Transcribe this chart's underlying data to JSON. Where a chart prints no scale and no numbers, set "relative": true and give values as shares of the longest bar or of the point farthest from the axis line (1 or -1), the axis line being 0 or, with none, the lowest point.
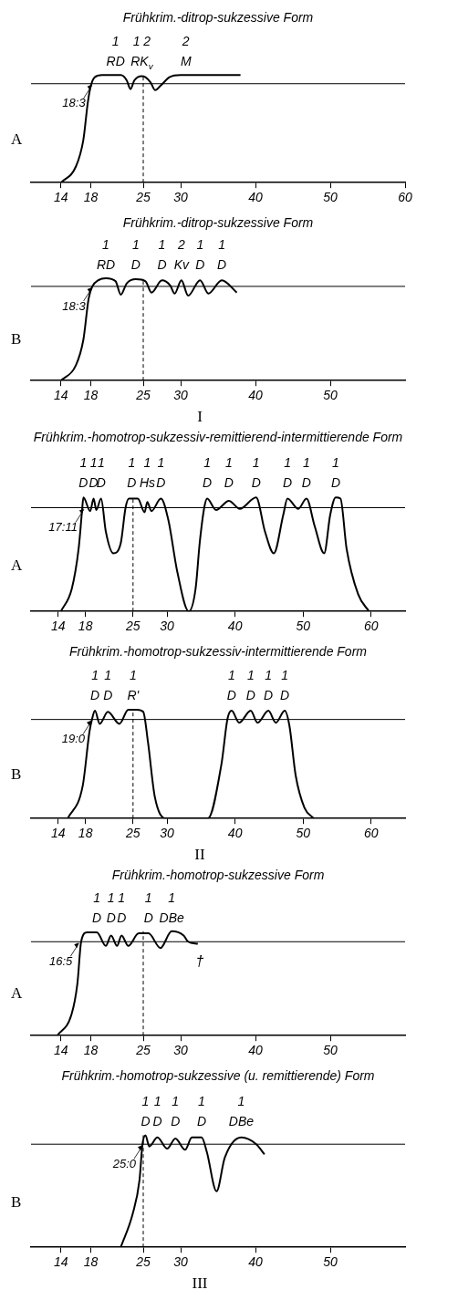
{
  "chart_data": [
    {
      "type": "line",
      "title": "Frühkrim.-ditrop-sukzessive Form",
      "relative": true,
      "color": "#000000",
      "xlim": [
        10,
        60
      ],
      "xticks": [
        14,
        18,
        25,
        30,
        40,
        50,
        60
      ],
      "x": [
        14,
        16,
        17,
        17.6,
        18,
        18.5,
        19.5,
        21.3,
        22,
        22.8,
        23.3,
        23.8,
        24.8,
        25.3,
        26,
        26.6,
        27.3,
        28.5,
        30,
        30.7,
        38
      ],
      "values": [
        0,
        0.15,
        0.4,
        0.75,
        0.9,
        0.98,
        1,
        1,
        1,
        0.95,
        0.87,
        0.95,
        0.99,
        0.98,
        0.93,
        0.86,
        0.9,
        0.98,
        1,
        1,
        1
      ],
      "ref_lines": [
        {
          "axis": "y",
          "value": 0.92
        },
        {
          "axis": "x",
          "value": 25,
          "line_style": "dashed"
        }
      ],
      "annotations": [
        "A",
        {
          "text": "18:3",
          "x": 18.25,
          "y": 0.92
        },
        {
          "text": "1\nRD",
          "x": 21.3,
          "y": 1
        },
        {
          "text": "1 2\nRK$_{v}$",
          "x": 24.8,
          "y": 0.99
        },
        {
          "text": "2\nM",
          "x": 30.7,
          "y": 1
        }
      ]
    },
    {
      "type": "line",
      "title": "Frühkrim.-ditrop-sukzessive Form",
      "relative": true,
      "color": "#000000",
      "xlim": [
        10,
        60
      ],
      "xticks": [
        14,
        18,
        25,
        30,
        40,
        50
      ],
      "x": [
        14,
        16,
        17,
        17.7,
        18.2,
        19,
        20,
        21.3,
        22,
        22.8,
        24,
        25.3,
        26.1,
        27.5,
        28.6,
        29.2,
        30.1,
        31,
        32.6,
        33.7,
        35.5,
        37.5
      ],
      "values": [
        0,
        0.15,
        0.4,
        0.8,
        0.92,
        0.98,
        1,
        0.97,
        0.84,
        0.95,
        0.99,
        0.97,
        0.86,
        0.98,
        0.93,
        0.85,
        0.98,
        0.83,
        0.98,
        0.85,
        0.98,
        0.86
      ],
      "ref_lines": [
        {
          "axis": "y",
          "value": 0.92
        },
        {
          "axis": "x",
          "value": 25,
          "line_style": "dashed"
        }
      ],
      "annotations": [
        "B",
        "I",
        {
          "text": "18:3",
          "x": 18.25,
          "y": 0.92
        },
        {
          "text": "1\nRD",
          "x": 20,
          "y": 1
        },
        {
          "text": "1\nD",
          "x": 24,
          "y": 0.99
        },
        {
          "text": "1\nD",
          "x": 27.5,
          "y": 0.98
        },
        {
          "text": "2\nKv",
          "x": 30.1,
          "y": 0.98
        },
        {
          "text": "1\nD",
          "x": 32.6,
          "y": 0.98
        },
        {
          "text": "1\nD",
          "x": 35.5,
          "y": 0.98
        }
      ]
    },
    {
      "type": "line",
      "title": "Frühkrim.-homotrop-sukzessiv-remittierend-intermittierende Form",
      "relative": true,
      "color": "#000000",
      "xlim": [
        10,
        65
      ],
      "xticks": [
        14,
        18,
        25,
        30,
        40,
        50,
        60
      ],
      "x": [
        14.4,
        16,
        17,
        17.5,
        17.7,
        18.7,
        19.2,
        19.6,
        20.3,
        21,
        22.1,
        23.2,
        23.9,
        24.4,
        24.8,
        25.7,
        26.7,
        27.1,
        27.7,
        29.1,
        30.2,
        31.5,
        33.2,
        34.2,
        34.8,
        35.5,
        35.9,
        37.2,
        39.1,
        40.7,
        43.1,
        44.4,
        45.7,
        47.1,
        47.7,
        49.3,
        50.5,
        51.7,
        53.1,
        54,
        54.8,
        55.5,
        56.4,
        58.1,
        59.7
      ],
      "values": [
        0,
        0.2,
        0.55,
        0.88,
        1,
        0.88,
        0.99,
        0.89,
        0.99,
        0.7,
        0.51,
        0.6,
        0.91,
        0.99,
        0.99,
        0.99,
        0.87,
        0.96,
        0.88,
        0.99,
        0.8,
        0.35,
        0,
        0.2,
        0.6,
        0.92,
        0.99,
        0.89,
        0.97,
        0.9,
        1,
        0.7,
        0.51,
        0.85,
        0.99,
        0.9,
        0.99,
        0.75,
        0.51,
        0.85,
        1,
        0.99,
        0.55,
        0.15,
        0
      ],
      "ref_lines": [
        {
          "axis": "y",
          "value": 0.91
        },
        {
          "axis": "x",
          "value": 25,
          "line_style": "dashed"
        }
      ],
      "annotations": [
        "A",
        {
          "text": "17:11",
          "x": 17.9,
          "y": 0.91
        },
        {
          "text": "1\nD",
          "x": 17.7,
          "y": 1
        },
        {
          "text": "1\nD",
          "x": 19.2,
          "y": 0.99
        },
        {
          "text": "1\nD",
          "x": 20.3,
          "y": 0.99
        },
        {
          "text": "1\nD",
          "x": 24.8,
          "y": 0.99
        },
        {
          "text": "1\nHs",
          "x": 27.1,
          "y": 0.96
        },
        {
          "text": "1\nD",
          "x": 29.1,
          "y": 0.99
        },
        {
          "text": "1\nD",
          "x": 35.9,
          "y": 0.99
        },
        {
          "text": "1\nD",
          "x": 39.1,
          "y": 0.97
        },
        {
          "text": "1\nD",
          "x": 43.1,
          "y": 1
        },
        {
          "text": "1\nD",
          "x": 47.7,
          "y": 0.99
        },
        {
          "text": "1\nD",
          "x": 50.5,
          "y": 0.99
        },
        {
          "text": "1\nD",
          "x": 54.8,
          "y": 1
        }
      ]
    },
    {
      "type": "line",
      "title": "Frühkrim.-homotrop-sukzessiv-intermittierende Form",
      "relative": true,
      "color": "#000000",
      "xlim": [
        10,
        65
      ],
      "xticks": [
        14,
        18,
        25,
        30,
        40,
        50,
        60
      ],
      "x": [
        15.4,
        17.6,
        18.6,
        19,
        19.4,
        20.1,
        21.3,
        23,
        24.3,
        25,
        25.6,
        26.5,
        27.2,
        28.2,
        29.8,
        36,
        38,
        38.9,
        39.5,
        40.6,
        42.3,
        43.3,
        44.9,
        46,
        47.3,
        48,
        48.9,
        50.2,
        51.6
      ],
      "values": [
        0,
        0.3,
        0.8,
        0.92,
        0.99,
        0.87,
        0.98,
        0.87,
        1,
        1,
        1,
        0.98,
        0.7,
        0.2,
        0,
        0,
        0.5,
        0.92,
        0.99,
        0.88,
        0.99,
        0.88,
        0.99,
        0.88,
        0.99,
        0.85,
        0.4,
        0.1,
        0
      ],
      "ref_lines": [
        {
          "axis": "y",
          "value": 0.91
        },
        {
          "axis": "x",
          "value": 25,
          "line_style": "dashed"
        }
      ],
      "annotations": [
        "B",
        "II",
        {
          "text": "19:0",
          "x": 19,
          "y": 0.91
        },
        {
          "text": "1\nD",
          "x": 19.4,
          "y": 0.99
        },
        {
          "text": "1\nD",
          "x": 21.3,
          "y": 0.98
        },
        {
          "text": "1\nR'",
          "x": 25,
          "y": 1
        },
        {
          "text": "1\nD",
          "x": 39.5,
          "y": 0.99
        },
        {
          "text": "1\nD",
          "x": 42.3,
          "y": 0.99
        },
        {
          "text": "1\nD",
          "x": 44.9,
          "y": 0.99
        },
        {
          "text": "1\nD",
          "x": 47.3,
          "y": 0.99
        }
      ]
    },
    {
      "type": "line",
      "title": "Frühkrim.-homotrop-sukzessive Form",
      "relative": true,
      "color": "#000000",
      "xlim": [
        10,
        60
      ],
      "xticks": [
        14,
        18,
        25,
        30,
        40,
        50
      ],
      "x": [
        13.5,
        15.4,
        16.2,
        16.7,
        17.5,
        18.8,
        20,
        20.7,
        21.5,
        22.1,
        23,
        24.4,
        25.7,
        27.3,
        28.8,
        30.4,
        31,
        32.3
      ],
      "values": [
        0,
        0.2,
        0.5,
        0.9,
        0.99,
        0.99,
        0.86,
        0.96,
        0.86,
        0.96,
        0.86,
        0.98,
        0.98,
        0.84,
        1,
        0.96,
        0.9,
        0.88
      ],
      "ref_lines": [
        {
          "axis": "y",
          "value": 0.9
        },
        {
          "axis": "x",
          "value": 25,
          "line_style": "dashed"
        }
      ],
      "annotations": [
        "A",
        {
          "text": "16:5",
          "x": 16.5,
          "y": 0.9
        },
        {
          "text": "†",
          "x": 32.3,
          "y": 0.88
        },
        {
          "text": "1\nD",
          "x": 18.8,
          "y": 0.99
        },
        {
          "text": "1\nD",
          "x": 20.7,
          "y": 0.96
        },
        {
          "text": "1\nD",
          "x": 22.1,
          "y": 0.96
        },
        {
          "text": "1\nD",
          "x": 25.7,
          "y": 0.98
        },
        {
          "text": "1\nDBe",
          "x": 28.8,
          "y": 1
        }
      ]
    },
    {
      "type": "line",
      "title": "Frühkrim.-homotrop-sukzessive (u. remittierende) Form",
      "relative": true,
      "color": "#000000",
      "xlim": [
        10,
        60
      ],
      "xticks": [
        14,
        18,
        25,
        30,
        40,
        50
      ],
      "x": [
        22,
        23.6,
        24.5,
        24.9,
        25.3,
        25.8,
        26.9,
        28.2,
        29.3,
        30.6,
        31.5,
        32.8,
        33.5,
        34.8,
        35.9,
        38.1,
        40.1,
        41.2
      ],
      "values": [
        0,
        0.3,
        0.6,
        0.92,
        1,
        0.9,
        0.98,
        0.88,
        0.97,
        0.87,
        0.98,
        0.98,
        0.85,
        0.5,
        0.8,
        0.98,
        0.92,
        0.83
      ],
      "ref_lines": [
        {
          "axis": "y",
          "value": 0.92
        },
        {
          "axis": "x",
          "value": 25,
          "line_style": "dashed"
        }
      ],
      "annotations": [
        "B",
        "III",
        {
          "text": "25:0",
          "x": 25,
          "y": 0.92
        },
        {
          "text": "1\nD",
          "x": 25.3,
          "y": 1
        },
        {
          "text": "1\nD",
          "x": 26.9,
          "y": 0.98
        },
        {
          "text": "1\nD",
          "x": 29.3,
          "y": 0.97
        },
        {
          "text": "1\nD",
          "x": 32.8,
          "y": 0.98
        },
        {
          "text": "1\nDBe",
          "x": 38.1,
          "y": 0.98
        }
      ]
    }
  ]
}
